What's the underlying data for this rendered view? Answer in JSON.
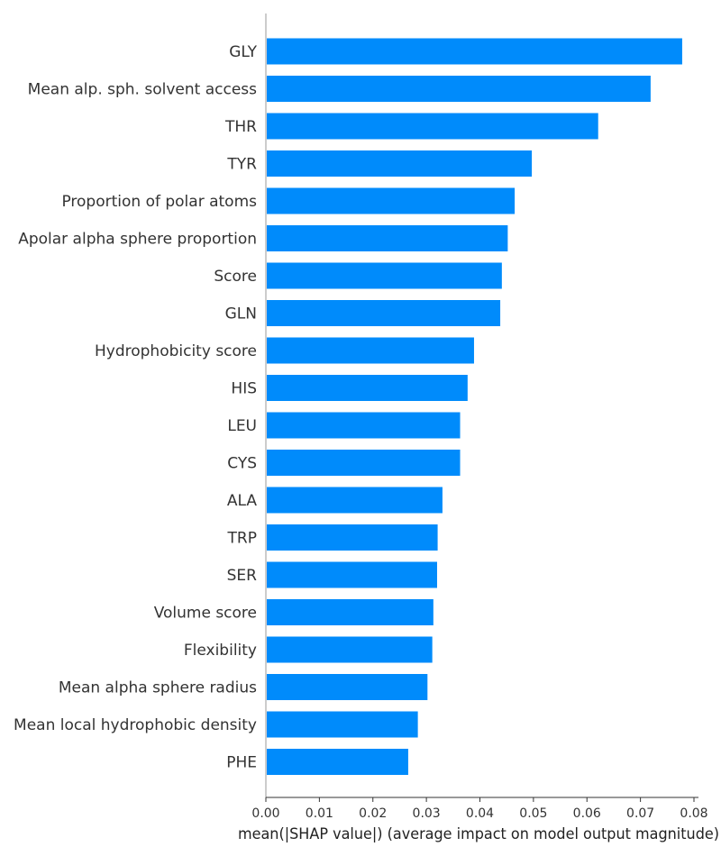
{
  "chart_data": {
    "type": "bar",
    "orientation": "horizontal",
    "categories": [
      "GLY",
      "Mean alp. sph. solvent access",
      "THR",
      "TYR",
      "Proportion of polar atoms",
      "Apolar alpha sphere proportion",
      "Score",
      "GLN",
      "Hydrophobicity score",
      "HIS",
      "LEU",
      "CYS",
      "ALA",
      "TRP",
      "SER",
      "Volume score",
      "Flexibility",
      "Mean alpha sphere radius",
      "Mean local hydrophobic density",
      "PHE"
    ],
    "values": [
      0.0778,
      0.0719,
      0.0621,
      0.0497,
      0.0465,
      0.0452,
      0.0441,
      0.0438,
      0.0389,
      0.0377,
      0.0363,
      0.0363,
      0.033,
      0.0321,
      0.032,
      0.0313,
      0.0311,
      0.0302,
      0.0284,
      0.0266
    ],
    "xlabel": "mean(|SHAP value|) (average impact on model output magnitude)",
    "ylabel": "",
    "title": "",
    "xlim": [
      0,
      0.08
    ],
    "xticks": [
      "0.00",
      "0.01",
      "0.02",
      "0.03",
      "0.04",
      "0.05",
      "0.06",
      "0.07",
      "0.08"
    ],
    "xtick_values": [
      0,
      0.01,
      0.02,
      0.03,
      0.04,
      0.05,
      0.06,
      0.07,
      0.08
    ],
    "bar_color": "#008bfb",
    "grid": false,
    "legend": "none"
  }
}
